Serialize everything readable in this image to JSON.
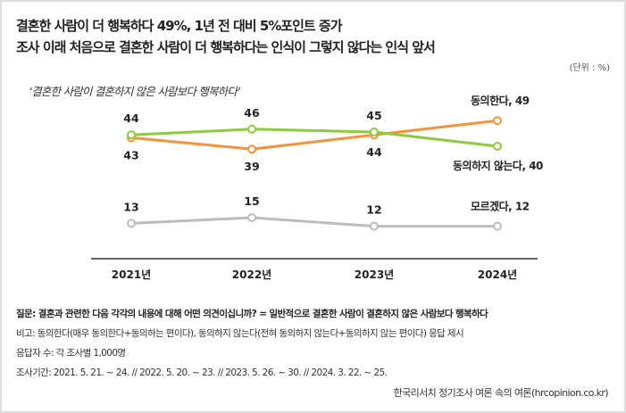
{
  "title_line1": "결혼한 사람이 더 행복하다 49%, 1년 전 대비 5%포인트 증가",
  "title_line2": "조사 이래 처음으로 결혼한 사람이 더 행복하다는 인식이 그렇지 않다는 인식 앞서",
  "unit": "(단위 : %)",
  "footnotes": [
    "질문: 결혼과 관련한 다음 각각의 내용에 대해 어떤 의견이십니까? = 일반적으로 결혼한 사람이 결혼하지 않은 사람보다 행복하다",
    "비고: 동의한다(매우 동의한다+동의하는 편이다), 동의하지 않는다(전혀 동의하지 않는다+동의하지 않는 편이다) 응답 제시",
    "응답자 수: 각 조사별 1,000명",
    "조사기간: 2021. 5. 21. ~ 24. // 2022. 5. 20. ~ 23. // 2023. 5. 26. ~ 30. // 2024. 3. 22. ~ 25."
  ],
  "source": "한국리서치 정기조사 여론 속의 여론(hrcopinion.co.kr)",
  "chart_data": {
    "type": "line",
    "subtitle": "‘결혼한 사람이 결혼하지 않은 사람보다 행복하다’",
    "categories": [
      "2021년",
      "2022년",
      "2023년",
      "2024년"
    ],
    "series": [
      {
        "name": "동의한다",
        "end_label": "동의한다, 49",
        "values": [
          43,
          39,
          44,
          49
        ],
        "color": "#f7923a",
        "label_pos": "below"
      },
      {
        "name": "동의하지 않는다",
        "end_label": "동의하지 않는다, 40",
        "values": [
          44,
          46,
          45,
          40
        ],
        "color": "#8ccc3e",
        "label_pos": "above"
      },
      {
        "name": "모르겠다",
        "end_label": "모르겠다, 12",
        "values": [
          13,
          15,
          12,
          12
        ],
        "color": "#bdbdbd",
        "label_pos": "above"
      }
    ],
    "ylim": [
      0,
      55
    ],
    "grid": false,
    "legend": "end-labels"
  }
}
